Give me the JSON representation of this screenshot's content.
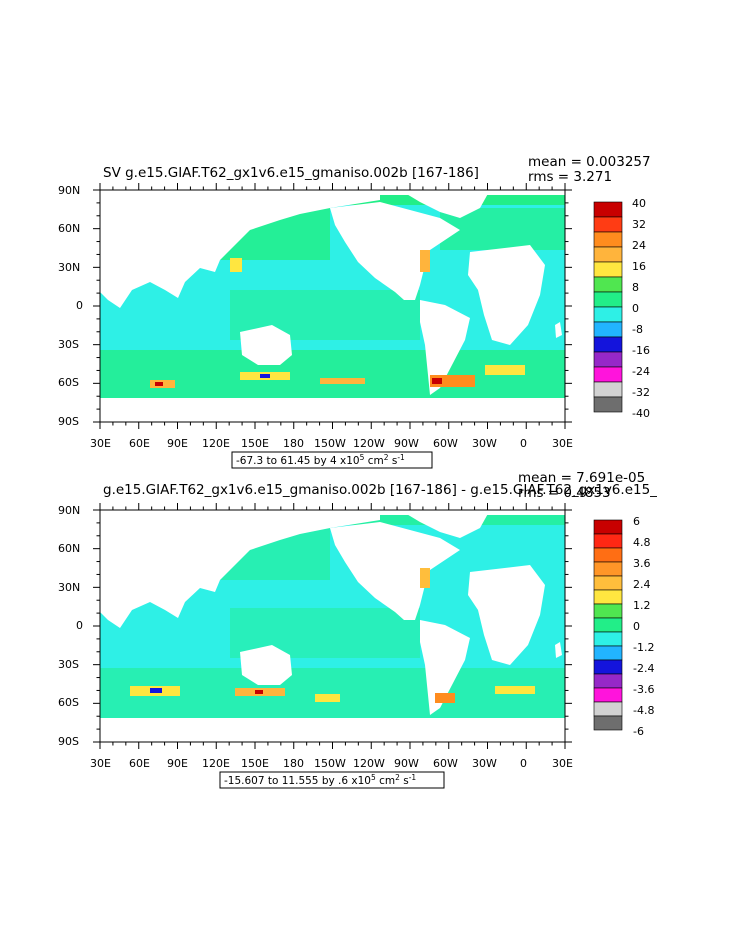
{
  "chart_data": [
    {
      "type": "heatmap",
      "title": "SV g.e15.GIAF.T62_gx1v6.e15_gmaniso.002b [167-186]",
      "stats": {
        "mean": "mean = 0.003257",
        "rms": "rms = 3.271"
      },
      "y_ticks": [
        "90N",
        "60N",
        "30N",
        "0",
        "30S",
        "60S",
        "90S"
      ],
      "x_ticks": [
        "30E",
        "60E",
        "90E",
        "120E",
        "150E",
        "180",
        "150W",
        "120W",
        "90W",
        "60W",
        "30W",
        "0",
        "30E"
      ],
      "contour_info": {
        "range": "-67.3 to 61.45 by 4 x10",
        "exp": "5",
        "unit": " cm",
        "unit_exp": "2",
        "unit2": " s",
        "unit2_exp": "-1"
      },
      "colorbar": {
        "labels": [
          "40",
          "32",
          "24",
          "16",
          "8",
          "0",
          "-8",
          "-16",
          "-24",
          "-32",
          "-40"
        ],
        "colors": [
          "#c80000",
          "#ff3c14",
          "#ff8c1e",
          "#ffb43c",
          "#ffe640",
          "#50e650",
          "#22ee88",
          "#2ef0e6",
          "#22b4ff",
          "#1414dc",
          "#9628c8",
          "#ff14dc",
          "#d2d2d2",
          "#6e6e6e"
        ]
      }
    },
    {
      "type": "heatmap",
      "title": "g.e15.GIAF.T62_gx1v6.e15_gmaniso.002b [167-186] - g.e15.GIAF.T62_gx1v6.e15_",
      "stats": {
        "mean": "mean = 7.691e-05",
        "rms": "rms = 0.4853"
      },
      "y_ticks": [
        "90N",
        "60N",
        "30N",
        "0",
        "30S",
        "60S",
        "90S"
      ],
      "x_ticks": [
        "30E",
        "60E",
        "90E",
        "120E",
        "150E",
        "180",
        "150W",
        "120W",
        "90W",
        "60W",
        "30W",
        "0",
        "30E"
      ],
      "contour_info": {
        "range": "-15.607 to 11.555 by .6 x10",
        "exp": "5",
        "unit": " cm",
        "unit_exp": "2",
        "unit2": " s",
        "unit2_exp": "-1"
      },
      "colorbar": {
        "labels": [
          "6",
          "4.8",
          "3.6",
          "2.4",
          "1.2",
          "0",
          "-1.2",
          "-2.4",
          "-3.6",
          "-4.8",
          "-6"
        ],
        "colors": [
          "#c80000",
          "#ff2814",
          "#ff6e14",
          "#ff9628",
          "#ffbe3c",
          "#ffe640",
          "#50e650",
          "#22ee88",
          "#2ef0e6",
          "#22b4ff",
          "#1414dc",
          "#9628c8",
          "#ff14dc",
          "#d2d2d2",
          "#6e6e6e"
        ]
      }
    }
  ],
  "colors": {
    "land": "#ffffff",
    "ocean_base": "#2ef0e6",
    "ocean_pos": "#22ee88"
  }
}
